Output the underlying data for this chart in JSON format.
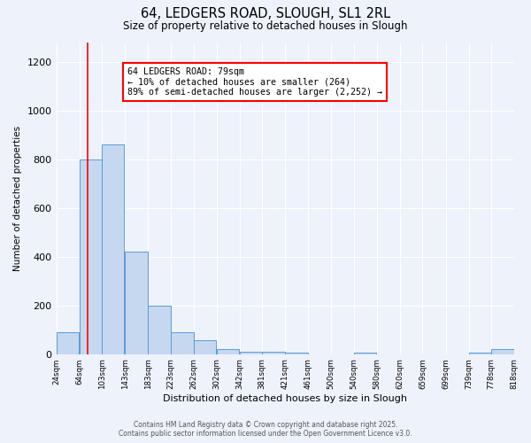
{
  "title_line1": "64, LEDGERS ROAD, SLOUGH, SL1 2RL",
  "title_line2": "Size of property relative to detached houses in Slough",
  "xlabel": "Distribution of detached houses by size in Slough",
  "ylabel": "Number of detached properties",
  "bar_left_edges": [
    24,
    64,
    103,
    143,
    183,
    223,
    262,
    302,
    342,
    381,
    421,
    461,
    500,
    540,
    580,
    620,
    659,
    699,
    739,
    778
  ],
  "bar_heights": [
    90,
    800,
    860,
    420,
    200,
    90,
    57,
    20,
    10,
    10,
    5,
    0,
    0,
    5,
    0,
    0,
    0,
    0,
    5,
    20
  ],
  "bin_width": 39,
  "xtick_labels": [
    "24sqm",
    "64sqm",
    "103sqm",
    "143sqm",
    "183sqm",
    "223sqm",
    "262sqm",
    "302sqm",
    "342sqm",
    "381sqm",
    "421sqm",
    "461sqm",
    "500sqm",
    "540sqm",
    "580sqm",
    "620sqm",
    "659sqm",
    "699sqm",
    "739sqm",
    "778sqm",
    "818sqm"
  ],
  "bar_color": "#c5d8f0",
  "bar_edge_color": "#5b9bd5",
  "background_color": "#eef2fb",
  "grid_color": "#ffffff",
  "red_line_x": 79,
  "annotation_text": "64 LEDGERS ROAD: 79sqm\n← 10% of detached houses are smaller (264)\n89% of semi-detached houses are larger (2,252) →",
  "annotation_box_color": "white",
  "annotation_box_edge": "red",
  "ylim": [
    0,
    1280
  ],
  "yticks": [
    0,
    200,
    400,
    600,
    800,
    1000,
    1200
  ],
  "footer_line1": "Contains HM Land Registry data © Crown copyright and database right 2025.",
  "footer_line2": "Contains public sector information licensed under the Open Government Licence v3.0."
}
